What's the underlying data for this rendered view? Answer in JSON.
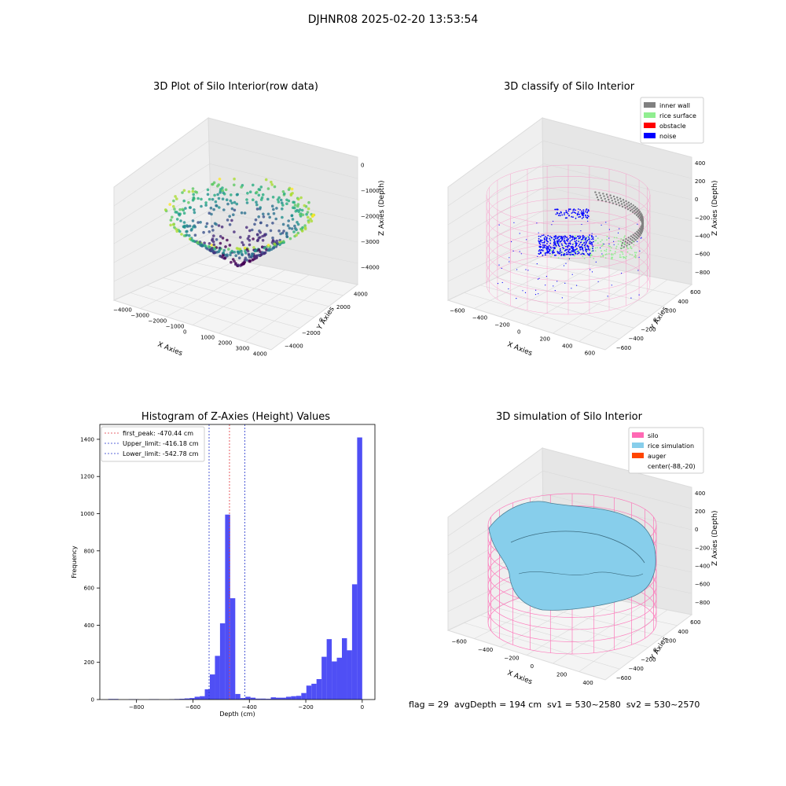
{
  "suptitle": "DJHNR08 2025-02-20 13:53:54",
  "footer": "flag = 29  avgDepth = 194 cm  sv1 = 530~2580  sv2 = 530~2570",
  "colors": {
    "hist": "#4f4ff5",
    "first_peak": "#e0343c",
    "limits": "#2233cc",
    "inner_wall": "#808080",
    "rice_surface": "#90ee90",
    "obstacle": "#ff0000",
    "noise": "#0000ff",
    "silo": "#ff69b4",
    "rice_simulation": "#87ceeb",
    "auger": "#ff4500"
  },
  "chart_data": [
    {
      "type": "scatter",
      "dimension": "3d",
      "title": "3D Plot of Silo Interior(row data)",
      "xlabel": "X Axies",
      "ylabel": "Y Axies",
      "zlabel": "Z Axies (Depth)",
      "xticks": [
        "−4000",
        "−3000",
        "−2000",
        "−1000",
        "0",
        "1000",
        "2000",
        "3000",
        "4000"
      ],
      "yticks": [
        "−4000",
        "−2000",
        "0",
        "2000",
        "4000"
      ],
      "zticks": [
        "0",
        "−1000",
        "−2000",
        "−3000",
        "−4000"
      ],
      "xlim": [
        -4500,
        4000
      ],
      "ylim": [
        -4500,
        4500
      ],
      "zlim": [
        -4500,
        200
      ],
      "colormap": "viridis"
    },
    {
      "type": "scatter",
      "dimension": "3d",
      "title": "3D classify of Silo Interior",
      "xlabel": "X Axies",
      "ylabel": "Y Axies",
      "zlabel": "Z Axies (Depth)",
      "xticks": [
        "−600",
        "−400",
        "−200",
        "0",
        "200",
        "400",
        "600"
      ],
      "yticks": [
        "−600",
        "−400",
        "−200",
        "0",
        "200",
        "400",
        "600"
      ],
      "zticks": [
        "400",
        "200",
        "0",
        "−200",
        "−400",
        "−600",
        "−800"
      ],
      "legend": {
        "position": "top-right",
        "entries": [
          {
            "label": "inner wall",
            "color": "#808080"
          },
          {
            "label": "rice surface",
            "color": "#90ee90"
          },
          {
            "label": "obstacle",
            "color": "#ff0000"
          },
          {
            "label": "noise",
            "color": "#0000ff"
          }
        ]
      }
    },
    {
      "type": "bar",
      "title": "Histogram of Z-Axies (Height) Values",
      "xlabel": "Depth (cm)",
      "ylabel": "Frequency",
      "xlim": [
        -930,
        45
      ],
      "ylim": [
        0,
        1480
      ],
      "xticks": [
        {
          "v": -800,
          "label": "−800"
        },
        {
          "v": -600,
          "label": "−600"
        },
        {
          "v": -400,
          "label": "−400"
        },
        {
          "v": -200,
          "label": "−200"
        },
        {
          "v": 0,
          "label": "0"
        }
      ],
      "yticks": [
        {
          "v": 0,
          "label": "0"
        },
        {
          "v": 200,
          "label": "200"
        },
        {
          "v": 400,
          "label": "400"
        },
        {
          "v": 600,
          "label": "600"
        },
        {
          "v": 800,
          "label": "800"
        },
        {
          "v": 1000,
          "label": "1000"
        },
        {
          "v": 1200,
          "label": "1200"
        },
        {
          "v": 1400,
          "label": "1400"
        }
      ],
      "bin_width": 18,
      "bins": [
        {
          "x": -900,
          "v": 3
        },
        {
          "x": -882,
          "v": 3
        },
        {
          "x": -864,
          "v": 0
        },
        {
          "x": -846,
          "v": 0
        },
        {
          "x": -828,
          "v": 2
        },
        {
          "x": -810,
          "v": 2
        },
        {
          "x": -792,
          "v": 0
        },
        {
          "x": -774,
          "v": 0
        },
        {
          "x": -756,
          "v": 2
        },
        {
          "x": -738,
          "v": 2
        },
        {
          "x": -720,
          "v": 0
        },
        {
          "x": -702,
          "v": 0
        },
        {
          "x": -684,
          "v": 2
        },
        {
          "x": -666,
          "v": 3
        },
        {
          "x": -648,
          "v": 4
        },
        {
          "x": -630,
          "v": 6
        },
        {
          "x": -612,
          "v": 8
        },
        {
          "x": -594,
          "v": 15
        },
        {
          "x": -576,
          "v": 18
        },
        {
          "x": -558,
          "v": 55
        },
        {
          "x": -540,
          "v": 135
        },
        {
          "x": -522,
          "v": 235
        },
        {
          "x": -504,
          "v": 410
        },
        {
          "x": -486,
          "v": 995
        },
        {
          "x": -468,
          "v": 545
        },
        {
          "x": -450,
          "v": 30
        },
        {
          "x": -432,
          "v": 8
        },
        {
          "x": -414,
          "v": 15
        },
        {
          "x": -396,
          "v": 10
        },
        {
          "x": -378,
          "v": 5
        },
        {
          "x": -360,
          "v": 5
        },
        {
          "x": -342,
          "v": 4
        },
        {
          "x": -324,
          "v": 12
        },
        {
          "x": -306,
          "v": 10
        },
        {
          "x": -288,
          "v": 10
        },
        {
          "x": -270,
          "v": 15
        },
        {
          "x": -252,
          "v": 18
        },
        {
          "x": -234,
          "v": 20
        },
        {
          "x": -216,
          "v": 35
        },
        {
          "x": -198,
          "v": 75
        },
        {
          "x": -180,
          "v": 85
        },
        {
          "x": -162,
          "v": 110
        },
        {
          "x": -144,
          "v": 230
        },
        {
          "x": -126,
          "v": 325
        },
        {
          "x": -108,
          "v": 205
        },
        {
          "x": -90,
          "v": 225
        },
        {
          "x": -72,
          "v": 330
        },
        {
          "x": -54,
          "v": 265
        },
        {
          "x": -36,
          "v": 620
        },
        {
          "x": -18,
          "v": 1410
        }
      ],
      "vlines": [
        {
          "name": "first_peak",
          "label": "first_peak: -470.44 cm",
          "x": -470.44
        },
        {
          "name": "upper_limit",
          "label": "Upper_limit: -416.18 cm",
          "x": -416.18
        },
        {
          "name": "lower_limit",
          "label": "Lower_limit: -542.78 cm",
          "x": -542.78
        }
      ],
      "legend": {
        "position": "top-left"
      }
    },
    {
      "type": "surface",
      "dimension": "3d",
      "title": "3D simulation of Silo Interior",
      "xlabel": "X Axies",
      "ylabel": "Y Axies",
      "zlabel": "Z Axies (Depth)",
      "xticks": [
        "−600",
        "−400",
        "−200",
        "0",
        "200",
        "400"
      ],
      "yticks": [
        "−600",
        "−400",
        "−200",
        "0",
        "200",
        "400",
        "600"
      ],
      "zticks": [
        "400",
        "200",
        "0",
        "−200",
        "−400",
        "−600",
        "−800"
      ],
      "legend": {
        "position": "top-right",
        "entries": [
          {
            "label": "silo",
            "color": "#ff69b4"
          },
          {
            "label": "rice simulation",
            "color": "#87ceeb"
          },
          {
            "label": "auger",
            "color": "#ff4500"
          },
          {
            "label": "center(-88,-20)",
            "color": ""
          }
        ]
      }
    }
  ]
}
